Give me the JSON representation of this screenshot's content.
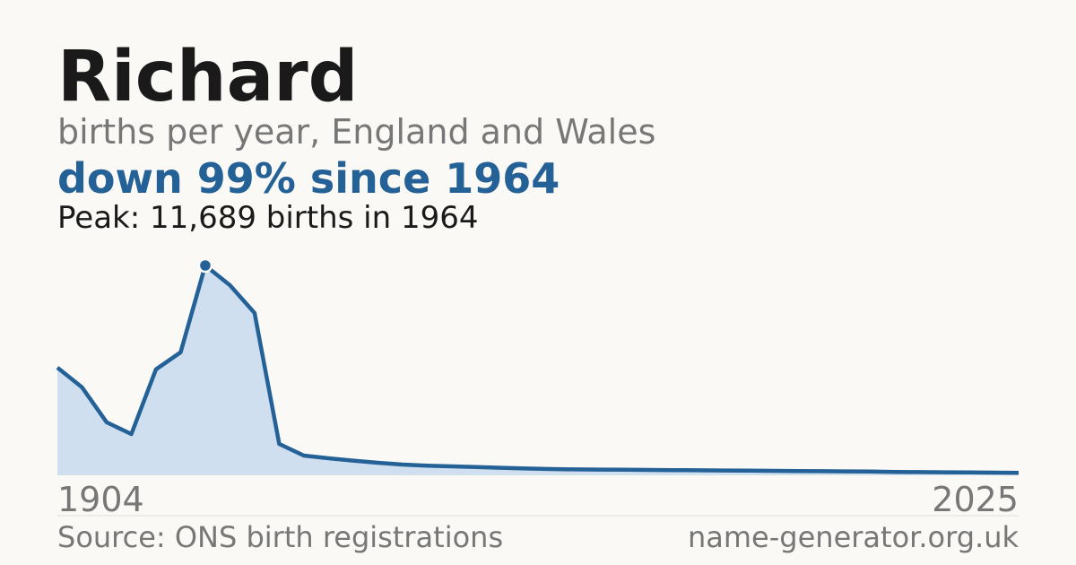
{
  "chart_data": {
    "type": "area",
    "title": "Richard",
    "subtitle": "births per year, England and Wales",
    "headline": "down 99% since 1964",
    "annotation": "Peak: 11,689 births in 1964",
    "source": "Source: ONS birth registrations",
    "site": "name-generator.org.uk",
    "categories": [
      "1904",
      null,
      null,
      null,
      null,
      null,
      null,
      null,
      null,
      null,
      null,
      null,
      null,
      null,
      null,
      null,
      null,
      null,
      null,
      null,
      null,
      null,
      null,
      null,
      null,
      null,
      null,
      null,
      null,
      null,
      null,
      null,
      null,
      null,
      null,
      null,
      null,
      null,
      null,
      "2025"
    ],
    "values": [
      6000,
      4900,
      2950,
      2300,
      5900,
      6850,
      11689,
      10590,
      9040,
      1750,
      1100,
      950,
      820,
      700,
      600,
      540,
      500,
      460,
      420,
      380,
      350,
      330,
      320,
      310,
      300,
      290,
      280,
      270,
      260,
      250,
      240,
      230,
      220,
      210,
      190,
      180,
      170,
      160,
      150,
      140
    ],
    "peak_index": 6,
    "color": "#236196",
    "fill": "#cfdff0",
    "ylim": [
      0,
      11689
    ]
  }
}
